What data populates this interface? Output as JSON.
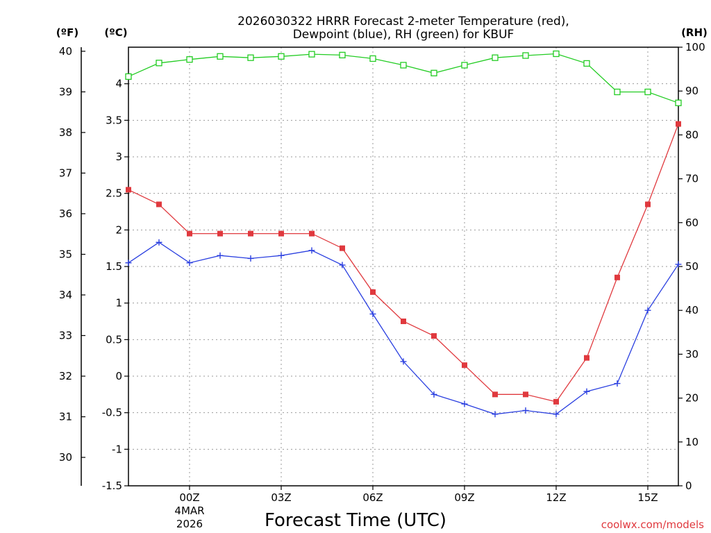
{
  "chart_data": {
    "type": "line",
    "title_line1": "2026030322 HRRR Forecast 2-meter Temperature (red),",
    "title_line2": "Dewpoint (blue), RH (green) for KBUF",
    "xlabel": "Forecast Time (UTC)",
    "credit": "coolwx.com/models",
    "units": {
      "fahrenheit": "(ºF)",
      "celsius": "(ºC)",
      "rh": "(RH)"
    },
    "x_range": [
      -2,
      16
    ],
    "x_ticks": [
      {
        "x": 0,
        "label": "00Z",
        "sub1": "4MAR",
        "sub2": "2026"
      },
      {
        "x": 3,
        "label": "03Z"
      },
      {
        "x": 6,
        "label": "06Z"
      },
      {
        "x": 9,
        "label": "09Z"
      },
      {
        "x": 12,
        "label": "12Z"
      },
      {
        "x": 15,
        "label": "15Z"
      }
    ],
    "y_celsius": {
      "range": [
        -1.5,
        4.5
      ],
      "ticks": [
        "-1.5",
        "-1",
        "-0.5",
        "0",
        "0.5",
        "1",
        "1.5",
        "2",
        "2.5",
        "3",
        "3.5",
        "4"
      ]
    },
    "y_fahrenheit": {
      "ticks": [
        "30",
        "31",
        "32",
        "33",
        "34",
        "35",
        "36",
        "37",
        "38",
        "39",
        "40"
      ]
    },
    "y_rh": {
      "range": [
        0,
        100
      ],
      "ticks": [
        "0",
        "10",
        "20",
        "30",
        "40",
        "50",
        "60",
        "70",
        "80",
        "90",
        "100"
      ]
    },
    "x": [
      -2,
      -1,
      0,
      1,
      2,
      3,
      4,
      5,
      6,
      7,
      8,
      9,
      10,
      11,
      12,
      13,
      14,
      15,
      16
    ],
    "series": [
      {
        "name": "Temperature",
        "axis": "celsius",
        "color": "#e0393e",
        "marker": "square",
        "values": [
          2.55,
          2.35,
          1.95,
          1.95,
          1.95,
          1.95,
          1.95,
          1.75,
          1.15,
          0.75,
          0.55,
          0.15,
          -0.25,
          -0.25,
          -0.35,
          0.25,
          1.35,
          2.35,
          3.45
        ]
      },
      {
        "name": "Dewpoint",
        "axis": "celsius",
        "color": "#2a3fe0",
        "marker": "plus",
        "values": [
          1.55,
          1.83,
          1.55,
          1.65,
          1.61,
          1.65,
          1.72,
          1.52,
          0.85,
          0.2,
          -0.25,
          -0.38,
          -0.52,
          -0.47,
          -0.52,
          -0.21,
          -0.1,
          0.9,
          1.53
        ]
      },
      {
        "name": "RH",
        "axis": "rh",
        "color": "#22cc22",
        "marker": "open-square",
        "values": [
          93.3,
          96.4,
          97.2,
          97.9,
          97.6,
          97.9,
          98.4,
          98.2,
          97.4,
          95.9,
          94.1,
          95.9,
          97.6,
          98.1,
          98.5,
          96.3,
          89.8,
          89.8,
          87.3
        ]
      }
    ]
  }
}
